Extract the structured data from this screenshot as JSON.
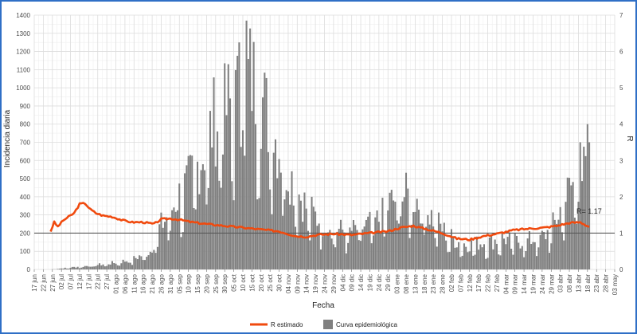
{
  "chart_data": {
    "type": "bar+line",
    "xlabel": "Fecha",
    "ylabel_left": "Incidencia diaria",
    "ylabel_right": "R",
    "ylim_left": [
      0,
      1400
    ],
    "ylim_right": [
      0,
      7
    ],
    "yticks_left": [
      0,
      100,
      200,
      300,
      400,
      500,
      600,
      700,
      800,
      900,
      1000,
      1100,
      1200,
      1300,
      1400
    ],
    "yticks_right": [
      0,
      1,
      2,
      3,
      4,
      5,
      6,
      7
    ],
    "x_date_range": [
      "2020-06-17",
      "2021-05-03"
    ],
    "x_tick_step_days": 5,
    "x_tick_labels": [
      "17 jun",
      "22 jun",
      "27 jun",
      "02 jul",
      "07 jul",
      "12 jul",
      "17 jul",
      "22 jul",
      "27 jul",
      "01 ago",
      "06 ago",
      "11 ago",
      "16 ago",
      "21 ago",
      "26 ago",
      "31 ago",
      "05 sep",
      "10 sep",
      "15 sep",
      "20 sep",
      "25 sep",
      "30 sep",
      "05 oct",
      "10 oct",
      "15 oct",
      "20 oct",
      "25 oct",
      "30 oct",
      "04 nov",
      "09 nov",
      "14 nov",
      "19 nov",
      "24 nov",
      "29 nov",
      "04 dic",
      "09 dic",
      "14 dic",
      "19 dic",
      "24 dic",
      "29 dic",
      "03 ene",
      "08 ene",
      "13 ene",
      "18 ene",
      "23 ene",
      "28 ene",
      "02 feb",
      "07 feb",
      "12 feb",
      "17 feb",
      "22 feb",
      "27 feb",
      "04 mar",
      "09 mar",
      "14 mar",
      "19 mar",
      "24 mar",
      "29 mar",
      "03 abr",
      "08 abr",
      "13 abr",
      "18 abr",
      "23 abr",
      "28 abr",
      "03 may"
    ],
    "reference_line_r": 1,
    "grid": true,
    "legend_position": "bottom",
    "series": [
      {
        "name": "Curva epidemiológica",
        "type": "bar",
        "color": "#808080",
        "keypoints": [
          [
            "2020-06-17",
            0
          ],
          [
            "2020-06-26",
            0
          ],
          [
            "2020-07-01",
            5
          ],
          [
            "2020-07-10",
            15
          ],
          [
            "2020-07-20",
            25
          ],
          [
            "2020-07-31",
            40
          ],
          [
            "2020-08-10",
            60
          ],
          [
            "2020-08-20",
            110
          ],
          [
            "2020-08-25",
            250
          ],
          [
            "2020-08-31",
            350
          ],
          [
            "2020-09-05",
            450
          ],
          [
            "2020-09-12",
            560
          ],
          [
            "2020-09-18",
            700
          ],
          [
            "2020-09-24",
            900
          ],
          [
            "2020-09-30",
            950
          ],
          [
            "2020-10-05",
            1000
          ],
          [
            "2020-10-10",
            1080
          ],
          [
            "2020-10-14",
            1180
          ],
          [
            "2020-10-20",
            1050
          ],
          [
            "2020-10-26",
            850
          ],
          [
            "2020-11-02",
            650
          ],
          [
            "2020-11-08",
            500
          ],
          [
            "2020-11-14",
            380
          ],
          [
            "2020-11-20",
            310
          ],
          [
            "2020-11-26",
            280
          ],
          [
            "2020-12-02",
            240
          ],
          [
            "2020-12-08",
            230
          ],
          [
            "2020-12-16",
            260
          ],
          [
            "2020-12-24",
            300
          ],
          [
            "2020-12-30",
            400
          ],
          [
            "2021-01-05",
            450
          ],
          [
            "2021-01-12",
            440
          ],
          [
            "2021-01-18",
            380
          ],
          [
            "2021-01-24",
            300
          ],
          [
            "2021-01-30",
            220
          ],
          [
            "2021-02-05",
            170
          ],
          [
            "2021-02-11",
            150
          ],
          [
            "2021-02-17",
            160
          ],
          [
            "2021-02-24",
            170
          ],
          [
            "2021-03-02",
            190
          ],
          [
            "2021-03-10",
            170
          ],
          [
            "2021-03-18",
            180
          ],
          [
            "2021-03-25",
            200
          ],
          [
            "2021-03-31",
            280
          ],
          [
            "2021-04-05",
            420
          ],
          [
            "2021-04-10",
            520
          ],
          [
            "2021-04-15",
            580
          ],
          [
            "2021-04-19",
            600
          ],
          [
            "2021-04-20",
            0
          ],
          [
            "2021-05-03",
            0
          ]
        ],
        "notable_values": [
          [
            "2020-10-12",
            1370
          ],
          [
            "2020-10-08",
            1250
          ],
          [
            "2020-10-02",
            1130
          ],
          [
            "2021-04-18",
            800
          ],
          [
            "2021-04-14",
            700
          ],
          [
            "2021-04-19",
            700
          ]
        ]
      },
      {
        "name": "R estimado",
        "type": "line",
        "axis": "right",
        "color": "#f04a0e",
        "points": [
          [
            "2020-06-26",
            1.05
          ],
          [
            "2020-06-28",
            1.3
          ],
          [
            "2020-06-30",
            1.18
          ],
          [
            "2020-07-03",
            1.35
          ],
          [
            "2020-07-06",
            1.45
          ],
          [
            "2020-07-09",
            1.55
          ],
          [
            "2020-07-12",
            1.8
          ],
          [
            "2020-07-15",
            1.82
          ],
          [
            "2020-07-18",
            1.65
          ],
          [
            "2020-07-21",
            1.55
          ],
          [
            "2020-07-25",
            1.48
          ],
          [
            "2020-07-30",
            1.45
          ],
          [
            "2020-08-05",
            1.35
          ],
          [
            "2020-08-10",
            1.3
          ],
          [
            "2020-08-16",
            1.3
          ],
          [
            "2020-08-22",
            1.25
          ],
          [
            "2020-08-26",
            1.38
          ],
          [
            "2020-08-31",
            1.4
          ],
          [
            "2020-09-05",
            1.37
          ],
          [
            "2020-09-12",
            1.3
          ],
          [
            "2020-09-20",
            1.25
          ],
          [
            "2020-09-30",
            1.2
          ],
          [
            "2020-10-10",
            1.15
          ],
          [
            "2020-10-20",
            1.1
          ],
          [
            "2020-10-30",
            1.05
          ],
          [
            "2020-11-08",
            0.92
          ],
          [
            "2020-11-14",
            0.9
          ],
          [
            "2020-11-20",
            0.95
          ],
          [
            "2020-11-29",
            0.98
          ],
          [
            "2020-12-09",
            0.95
          ],
          [
            "2020-12-19",
            1.0
          ],
          [
            "2020-12-29",
            1.05
          ],
          [
            "2021-01-05",
            1.15
          ],
          [
            "2021-01-12",
            1.2
          ],
          [
            "2021-01-20",
            1.1
          ],
          [
            "2021-01-28",
            1.0
          ],
          [
            "2021-02-05",
            0.85
          ],
          [
            "2021-02-12",
            0.82
          ],
          [
            "2021-02-20",
            0.92
          ],
          [
            "2021-03-01",
            1.0
          ],
          [
            "2021-03-08",
            1.08
          ],
          [
            "2021-03-16",
            1.12
          ],
          [
            "2021-03-25",
            1.15
          ],
          [
            "2021-04-01",
            1.2
          ],
          [
            "2021-04-08",
            1.28
          ],
          [
            "2021-04-14",
            1.3
          ],
          [
            "2021-04-19",
            1.17
          ]
        ]
      }
    ],
    "annotation": "R= 1.17",
    "legend": [
      {
        "label": "R estimado",
        "kind": "line",
        "color": "#f04a0e"
      },
      {
        "label": "Curva epidemiológica",
        "kind": "box",
        "color": "#808080"
      }
    ]
  }
}
